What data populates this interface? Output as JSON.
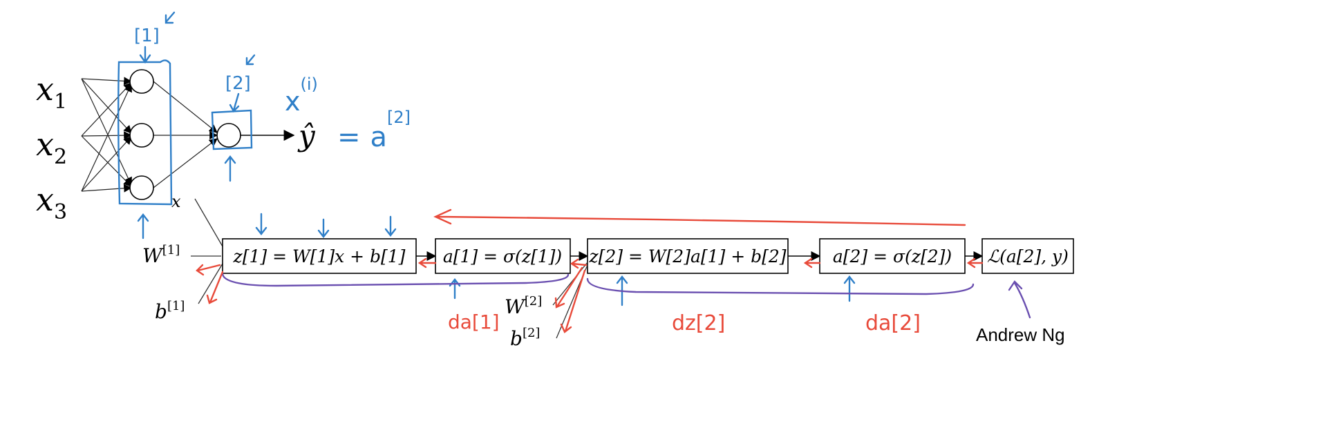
{
  "colors": {
    "ink": "#000000",
    "blue": "#2f7fc8",
    "red": "#e84a3a",
    "purple": "#6a4fb0"
  },
  "network": {
    "inputs": [
      {
        "base": "x",
        "sub": "1"
      },
      {
        "base": "x",
        "sub": "2"
      },
      {
        "base": "x",
        "sub": "3"
      }
    ],
    "output": "ŷ",
    "layer1_label": "[1]",
    "layer2_label": "[2]",
    "sample_label": {
      "base": "x",
      "sup": "(i)"
    },
    "equals_label": {
      "eq": "=",
      "base": "a",
      "sup": "[2]"
    }
  },
  "graph": {
    "x_label": "x",
    "w1": {
      "base": "W",
      "sup": "[1]"
    },
    "b1": {
      "base": "b",
      "sup": "[1]"
    },
    "w2": {
      "base": "W",
      "sup": "[2]"
    },
    "b2": {
      "base": "b",
      "sup": "[2]"
    },
    "boxes": [
      {
        "text": "z[1] = W[1]x + b[1]"
      },
      {
        "text": "a[1] = σ(z[1])"
      },
      {
        "text": "z[2] = W[2]a[1] + b[2]"
      },
      {
        "text": "a[2] = σ(z[2])"
      },
      {
        "text": "ℒ(a[2], y)"
      }
    ]
  },
  "annotations": {
    "da1": "da[1]",
    "dz2": "dz[2]",
    "da2": "da[2]"
  },
  "credit": "Andrew Ng"
}
